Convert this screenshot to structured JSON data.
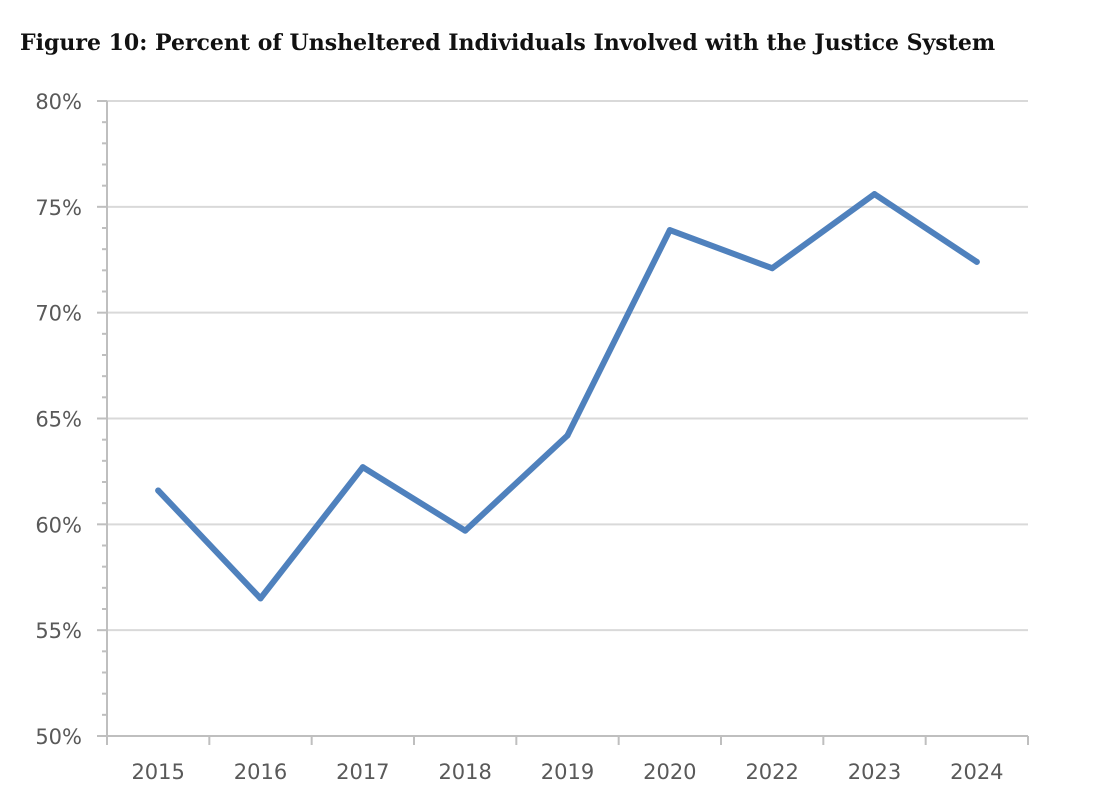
{
  "figure": {
    "title": "Figure 10: Percent of Unsheltered Individuals Involved with the Justice System"
  },
  "chart_data": {
    "type": "line",
    "title": "Figure 10: Percent of Unsheltered Individuals Involved with the Justice System",
    "categories": [
      "2015",
      "2016",
      "2017",
      "2018",
      "2019",
      "2020",
      "2022",
      "2023",
      "2024"
    ],
    "series": [
      {
        "values": [
          61.6,
          56.5,
          62.7,
          59.7,
          64.2,
          73.9,
          72.1,
          75.6,
          72.4
        ],
        "color": "#4F81BD"
      }
    ],
    "y_ticks": [
      "50%",
      "55%",
      "60%",
      "65%",
      "70%",
      "75%",
      "80%"
    ],
    "ylim": [
      50,
      80
    ],
    "xlabel": "",
    "ylabel": "",
    "grid": true,
    "legend": "none",
    "colors": {
      "line": "#4F81BD",
      "grid": "#D9D9D9",
      "axis": "#BFBFBF",
      "tick_text": "#595959"
    }
  }
}
